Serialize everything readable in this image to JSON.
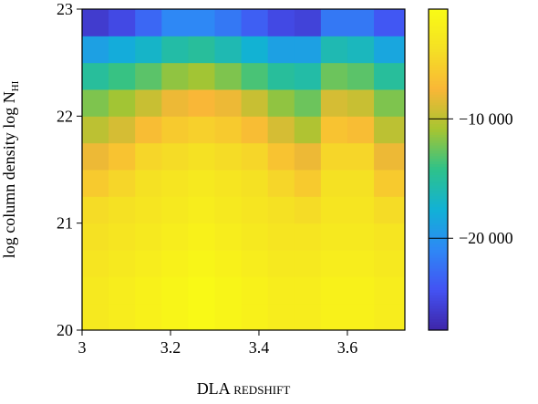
{
  "chart_data": {
    "type": "heatmap",
    "xlabel": "DLA redshift",
    "ylabel": "log column density log N",
    "ylabel_sub": "HI",
    "xbins": [
      3.0,
      3.06,
      3.12,
      3.18,
      3.24,
      3.3,
      3.36,
      3.42,
      3.48,
      3.54,
      3.6,
      3.66,
      3.73
    ],
    "ybins": [
      20.0,
      20.25,
      20.5,
      20.75,
      21.0,
      21.25,
      21.5,
      21.75,
      22.0,
      22.25,
      22.5,
      22.75,
      23.0
    ],
    "z": [
      [
        -3000,
        -2500,
        -2000,
        -1500,
        -1000,
        -1500,
        -2000,
        -2500,
        -2500,
        -2000,
        -2000,
        -2500
      ],
      [
        -3000,
        -2500,
        -2000,
        -1500,
        -1000,
        -1500,
        -2000,
        -2500,
        -2500,
        -2000,
        -2000,
        -2500
      ],
      [
        -3500,
        -3000,
        -2500,
        -2000,
        -1500,
        -2000,
        -2500,
        -3000,
        -3000,
        -2500,
        -2500,
        -3000
      ],
      [
        -4000,
        -3500,
        -3000,
        -2500,
        -2000,
        -2500,
        -3000,
        -3500,
        -3500,
        -3000,
        -3000,
        -3500
      ],
      [
        -4500,
        -4000,
        -3500,
        -3000,
        -2500,
        -3000,
        -3500,
        -4000,
        -4500,
        -3500,
        -3500,
        -4500
      ],
      [
        -6000,
        -5000,
        -4000,
        -3500,
        -3000,
        -3500,
        -4000,
        -5000,
        -6000,
        -4000,
        -4000,
        -6000
      ],
      [
        -8000,
        -6500,
        -5000,
        -4500,
        -4000,
        -4500,
        -5000,
        -6500,
        -8000,
        -5000,
        -5000,
        -8000
      ],
      [
        -10000,
        -9000,
        -7000,
        -6000,
        -5500,
        -6000,
        -7000,
        -9000,
        -10500,
        -6500,
        -7000,
        -10000
      ],
      [
        -12000,
        -11000,
        -9500,
        -8000,
        -7500,
        -8000,
        -9500,
        -11500,
        -12500,
        -9000,
        -9500,
        -12000
      ],
      [
        -15000,
        -14000,
        -13000,
        -11500,
        -11000,
        -12000,
        -13500,
        -15000,
        -15500,
        -12500,
        -13000,
        -15000
      ],
      [
        -19000,
        -18000,
        -17000,
        -15500,
        -15000,
        -16000,
        -17500,
        -19000,
        -19000,
        -16000,
        -16500,
        -18500
      ],
      [
        -26000,
        -25000,
        -23000,
        -21000,
        -21000,
        -22000,
        -23500,
        -25000,
        -25500,
        -22000,
        -22000,
        -24000
      ]
    ],
    "xlim": [
      3.0,
      3.73
    ],
    "xticks": [
      3,
      3.2,
      3.4,
      3.6
    ],
    "ylim": [
      20,
      23
    ],
    "yticks": [
      20,
      21,
      22,
      23
    ],
    "clim": [
      -27700,
      -800
    ],
    "cticks": [
      {
        "value": -20000,
        "label": "−20 000"
      },
      {
        "value": -10000,
        "label": "−10 000"
      }
    ],
    "colormap": [
      "#3e26a8",
      "#4352f3",
      "#2e88f5",
      "#11b1d6",
      "#2ec28a",
      "#a6c531",
      "#f9b737",
      "#f5e024",
      "#f9fb15"
    ]
  }
}
